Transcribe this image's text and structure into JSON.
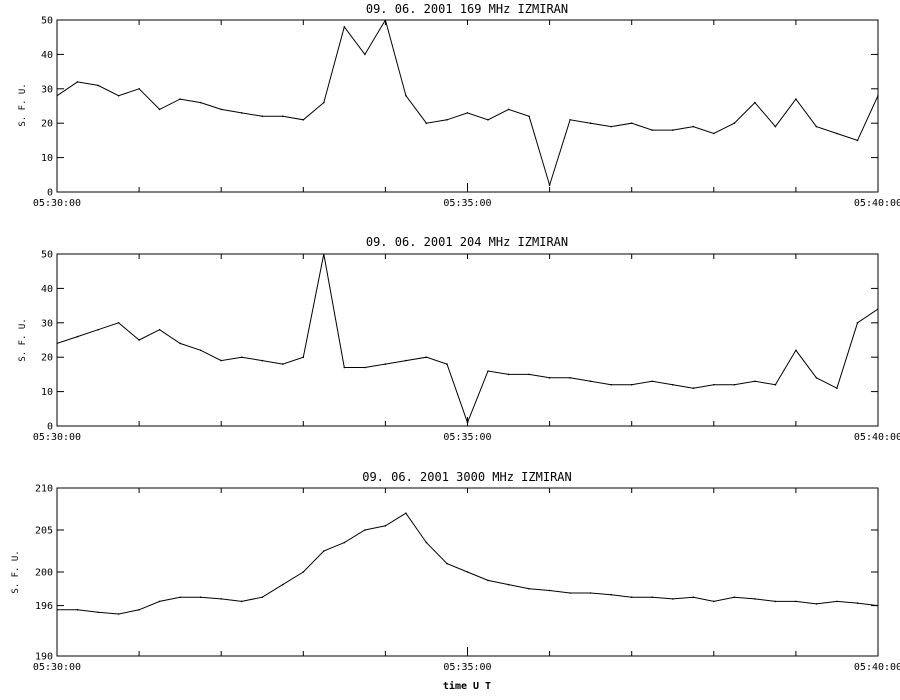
{
  "chart_data": [
    {
      "type": "line",
      "title": "09.  06.  2001    169 MHz    IZMIRAN",
      "ylabel": "S. F. U.",
      "xlabel": "",
      "ylim": [
        0,
        50
      ],
      "yticks": [
        "0",
        "10",
        "20",
        "30",
        "40",
        "50"
      ],
      "xlim": [
        "05:30:00",
        "05:40:00"
      ],
      "xticks": [
        "05:30:00",
        "05:35:00",
        "05:40:00"
      ],
      "grid": false,
      "series": [
        {
          "x": [
            "05:30:00",
            "05:30:15",
            "05:30:30",
            "05:30:45",
            "05:31:00",
            "05:31:15",
            "05:31:30",
            "05:31:45",
            "05:32:00",
            "05:32:15",
            "05:32:30",
            "05:32:45",
            "05:33:00",
            "05:33:15",
            "05:33:30",
            "05:33:45",
            "05:34:00",
            "05:34:15",
            "05:34:30",
            "05:34:45",
            "05:35:00",
            "05:35:15",
            "05:35:30",
            "05:35:45",
            "05:36:00",
            "05:36:15",
            "05:36:30",
            "05:36:45",
            "05:37:00",
            "05:37:15",
            "05:37:30",
            "05:37:45",
            "05:38:00",
            "05:38:15",
            "05:38:30",
            "05:38:45",
            "05:39:00",
            "05:39:15",
            "05:39:30",
            "05:39:45",
            "05:40:00"
          ],
          "values": [
            28,
            32,
            31,
            28,
            30,
            24,
            27,
            26,
            24,
            23,
            22,
            22,
            21,
            26,
            48,
            40,
            50,
            28,
            20,
            21,
            23,
            21,
            24,
            22,
            2,
            21,
            20,
            19,
            20,
            18,
            18,
            19,
            17,
            20,
            26,
            19,
            27,
            19,
            17,
            15,
            28
          ]
        }
      ]
    },
    {
      "type": "line",
      "title": "09.  06.  2001    204 MHz    IZMIRAN",
      "ylabel": "S. F. U.",
      "xlabel": "",
      "ylim": [
        0,
        50
      ],
      "yticks": [
        "0",
        "10",
        "20",
        "30",
        "40",
        "50"
      ],
      "xlim": [
        "05:30:00",
        "05:40:00"
      ],
      "xticks": [
        "05:30:00",
        "05:35:00",
        "05:40:00"
      ],
      "grid": false,
      "series": [
        {
          "x": [
            "05:30:00",
            "05:30:15",
            "05:30:30",
            "05:30:45",
            "05:31:00",
            "05:31:15",
            "05:31:30",
            "05:31:45",
            "05:32:00",
            "05:32:15",
            "05:32:30",
            "05:32:45",
            "05:33:00",
            "05:33:15",
            "05:33:30",
            "05:33:45",
            "05:34:00",
            "05:34:15",
            "05:34:30",
            "05:34:45",
            "05:35:00",
            "05:35:15",
            "05:35:30",
            "05:35:45",
            "05:36:00",
            "05:36:15",
            "05:36:30",
            "05:36:45",
            "05:37:00",
            "05:37:15",
            "05:37:30",
            "05:37:45",
            "05:38:00",
            "05:38:15",
            "05:38:30",
            "05:38:45",
            "05:39:00",
            "05:39:15",
            "05:39:30",
            "05:39:45",
            "05:40:00"
          ],
          "values": [
            24,
            26,
            28,
            30,
            25,
            28,
            24,
            22,
            19,
            20,
            19,
            18,
            20,
            50,
            17,
            17,
            18,
            19,
            20,
            18,
            1,
            16,
            15,
            15,
            14,
            14,
            13,
            12,
            12,
            13,
            12,
            11,
            12,
            12,
            13,
            12,
            22,
            14,
            11,
            30,
            34
          ]
        }
      ]
    },
    {
      "type": "line",
      "title": "09.  06.  2001    3000 MHz    IZMIRAN",
      "ylabel": "S. F. U.",
      "xlabel": "time  U T",
      "ylim": [
        190,
        210
      ],
      "yticks": [
        "190",
        "196",
        "200",
        "205",
        "210"
      ],
      "xlim": [
        "05:30:00",
        "05:40:00"
      ],
      "xticks": [
        "05:30:00",
        "05:35:00",
        "05:40:00"
      ],
      "grid": false,
      "series": [
        {
          "x": [
            "05:30:00",
            "05:30:15",
            "05:30:30",
            "05:30:45",
            "05:31:00",
            "05:31:15",
            "05:31:30",
            "05:31:45",
            "05:32:00",
            "05:32:15",
            "05:32:30",
            "05:32:45",
            "05:33:00",
            "05:33:15",
            "05:33:30",
            "05:33:45",
            "05:34:00",
            "05:34:15",
            "05:34:30",
            "05:34:45",
            "05:35:00",
            "05:35:15",
            "05:35:30",
            "05:35:45",
            "05:36:00",
            "05:36:15",
            "05:36:30",
            "05:36:45",
            "05:37:00",
            "05:37:15",
            "05:37:30",
            "05:37:45",
            "05:38:00",
            "05:38:15",
            "05:38:30",
            "05:38:45",
            "05:39:00",
            "05:39:15",
            "05:39:30",
            "05:39:45",
            "05:40:00"
          ],
          "values": [
            195.5,
            195.5,
            195.2,
            195.0,
            195.5,
            196.5,
            197.0,
            197.0,
            196.8,
            196.5,
            197.0,
            198.5,
            200.0,
            202.5,
            203.5,
            205.0,
            205.5,
            207.0,
            203.5,
            201.0,
            200.0,
            199.0,
            198.5,
            198.0,
            197.8,
            197.5,
            197.5,
            197.3,
            197.0,
            197.0,
            196.8,
            197.0,
            196.5,
            197.0,
            196.8,
            196.5,
            196.5,
            196.2,
            196.5,
            196.3,
            196.0
          ]
        }
      ]
    }
  ]
}
